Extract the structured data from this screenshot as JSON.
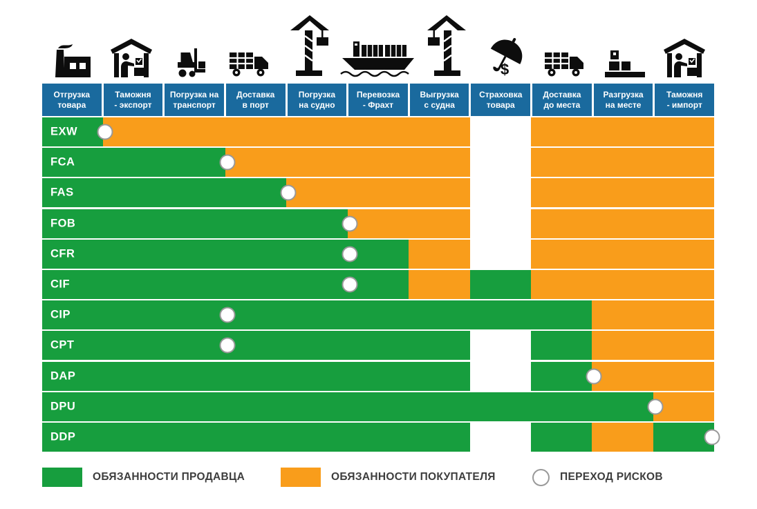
{
  "palette": {
    "seller_green": "#179E3E",
    "buyer_orange": "#F99D1B",
    "header_blue": "#1A6A9E",
    "risk_circle_border": "#999999",
    "legend_text": "#3D3D3D",
    "icon_black": "#0D0D0D"
  },
  "columns": [
    {
      "label": "Отгрузка товара",
      "lines": [
        "Отгрузка",
        "товара"
      ],
      "icon": "factory-icon"
    },
    {
      "label": "Таможня - экспорт",
      "lines": [
        "Таможня",
        "- экспорт"
      ],
      "icon": "customs-export-icon"
    },
    {
      "label": "Погрузка на транспорт",
      "lines": [
        "Погрузка на",
        "транспорт"
      ],
      "icon": "forklift-icon"
    },
    {
      "label": "Доставка в порт",
      "lines": [
        "Доставка",
        "в порт"
      ],
      "icon": "truck-icon"
    },
    {
      "label": "Погрузка на судно",
      "lines": [
        "Погрузка",
        "на судно"
      ],
      "icon": "port-crane-icon"
    },
    {
      "label": "Перевозка - Фрахт",
      "lines": [
        "Перевозка",
        "- Фрахт"
      ],
      "icon": "container-ship-icon"
    },
    {
      "label": "Выгрузка с судна",
      "lines": [
        "Выгрузка",
        "с судна"
      ],
      "icon": "port-crane-mirrored-icon"
    },
    {
      "label": "Страховка товара",
      "lines": [
        "Страховка",
        "товара"
      ],
      "icon": "insurance-umbrella-icon"
    },
    {
      "label": "Доставка до места",
      "lines": [
        "Доставка",
        "до места"
      ],
      "icon": "delivery-truck-icon"
    },
    {
      "label": "Разгрузка на месте",
      "lines": [
        "Разгрузка",
        "на месте"
      ],
      "icon": "cargo-boxes-icon"
    },
    {
      "label": "Таможня - импорт",
      "lines": [
        "Таможня",
        "- импорт"
      ],
      "icon": "customs-import-icon"
    }
  ],
  "rows": [
    {
      "code": "EXW",
      "risk_transfer_after_column": 1,
      "segments": [
        {
          "role": "seller",
          "from": 1,
          "to": 1
        },
        {
          "role": "buyer",
          "from": 2,
          "to": 7
        },
        {
          "role": "none",
          "from": 8,
          "to": 8
        },
        {
          "role": "buyer",
          "from": 9,
          "to": 11
        }
      ]
    },
    {
      "code": "FCA",
      "risk_transfer_after_column": 3,
      "segments": [
        {
          "role": "seller",
          "from": 1,
          "to": 3
        },
        {
          "role": "buyer",
          "from": 4,
          "to": 7
        },
        {
          "role": "none",
          "from": 8,
          "to": 8
        },
        {
          "role": "buyer",
          "from": 9,
          "to": 11
        }
      ]
    },
    {
      "code": "FAS",
      "risk_transfer_after_column": 4,
      "segments": [
        {
          "role": "seller",
          "from": 1,
          "to": 4
        },
        {
          "role": "buyer",
          "from": 5,
          "to": 7
        },
        {
          "role": "none",
          "from": 8,
          "to": 8
        },
        {
          "role": "buyer",
          "from": 9,
          "to": 11
        }
      ]
    },
    {
      "code": "FOB",
      "risk_transfer_after_column": 5,
      "segments": [
        {
          "role": "seller",
          "from": 1,
          "to": 5
        },
        {
          "role": "buyer",
          "from": 6,
          "to": 7
        },
        {
          "role": "none",
          "from": 8,
          "to": 8
        },
        {
          "role": "buyer",
          "from": 9,
          "to": 11
        }
      ]
    },
    {
      "code": "CFR",
      "risk_transfer_after_column": 5,
      "segments": [
        {
          "role": "seller",
          "from": 1,
          "to": 6
        },
        {
          "role": "buyer",
          "from": 7,
          "to": 7
        },
        {
          "role": "none",
          "from": 8,
          "to": 8
        },
        {
          "role": "buyer",
          "from": 9,
          "to": 11
        }
      ]
    },
    {
      "code": "CIF",
      "risk_transfer_after_column": 5,
      "segments": [
        {
          "role": "seller",
          "from": 1,
          "to": 6
        },
        {
          "role": "buyer",
          "from": 7,
          "to": 7
        },
        {
          "role": "seller",
          "from": 8,
          "to": 8
        },
        {
          "role": "buyer",
          "from": 9,
          "to": 11
        }
      ]
    },
    {
      "code": "CIP",
      "risk_transfer_after_column": 3,
      "segments": [
        {
          "role": "seller",
          "from": 1,
          "to": 9
        },
        {
          "role": "buyer",
          "from": 10,
          "to": 11
        }
      ]
    },
    {
      "code": "CPT",
      "risk_transfer_after_column": 3,
      "segments": [
        {
          "role": "seller",
          "from": 1,
          "to": 7
        },
        {
          "role": "none",
          "from": 8,
          "to": 8
        },
        {
          "role": "seller",
          "from": 9,
          "to": 9
        },
        {
          "role": "buyer",
          "from": 10,
          "to": 11
        }
      ]
    },
    {
      "code": "DAP",
      "risk_transfer_after_column": 9,
      "segments": [
        {
          "role": "seller",
          "from": 1,
          "to": 7
        },
        {
          "role": "none",
          "from": 8,
          "to": 8
        },
        {
          "role": "seller",
          "from": 9,
          "to": 9
        },
        {
          "role": "buyer",
          "from": 10,
          "to": 11
        }
      ]
    },
    {
      "code": "DPU",
      "risk_transfer_after_column": 10,
      "segments": [
        {
          "role": "seller",
          "from": 1,
          "to": 10
        },
        {
          "role": "buyer",
          "from": 11,
          "to": 11
        }
      ]
    },
    {
      "code": "DDP",
      "risk_transfer_after_column": 11,
      "segments": [
        {
          "role": "seller",
          "from": 1,
          "to": 7
        },
        {
          "role": "none",
          "from": 8,
          "to": 8
        },
        {
          "role": "seller",
          "from": 9,
          "to": 9
        },
        {
          "role": "buyer",
          "from": 10,
          "to": 10
        },
        {
          "role": "seller",
          "from": 11,
          "to": 11
        }
      ]
    }
  ],
  "legend": [
    {
      "type": "seller",
      "label": "ОБЯЗАННОСТИ ПРОДАВЦА"
    },
    {
      "type": "buyer",
      "label": "ОБЯЗАННОСТИ ПОКУПАТЕЛЯ"
    },
    {
      "type": "risk",
      "label": "ПЕРЕХОД РИСКОВ"
    }
  ]
}
